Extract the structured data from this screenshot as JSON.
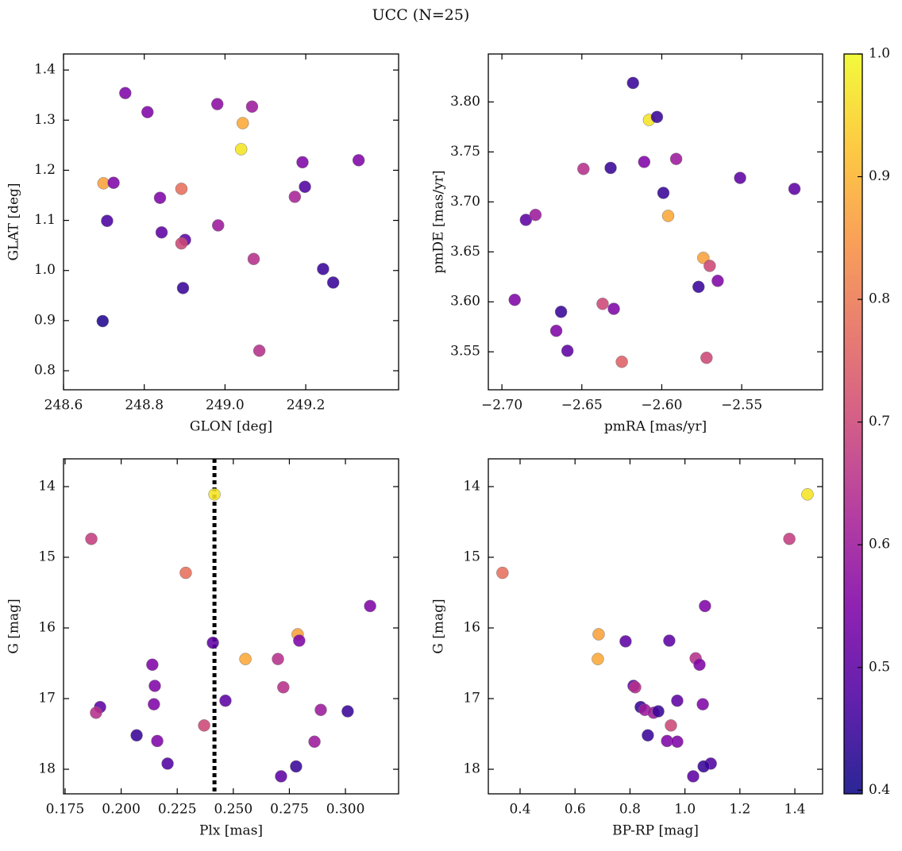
{
  "title": "UCC (N=25)",
  "chart_data": [
    {
      "type": "scatter",
      "xlabel": "GLON [deg]",
      "ylabel": "GLAT [deg]",
      "xlim": [
        248.6,
        249.43
      ],
      "ylim": [
        0.762,
        1.432
      ],
      "xticks": [
        248.6,
        248.8,
        {
          "value": 249.0,
          "label": "249.0"
        },
        249.2
      ],
      "yticks": [
        0.8,
        0.9,
        {
          "value": 1.0,
          "label": "1.0"
        },
        1.1,
        1.2,
        1.3,
        1.4
      ],
      "x": [
        248.753,
        248.808,
        248.981,
        249.067,
        249.044,
        249.04,
        248.699,
        248.724,
        248.892,
        248.839,
        249.192,
        249.331,
        249.198,
        249.173,
        248.708,
        248.843,
        248.901,
        248.892,
        248.983,
        249.071,
        249.243,
        249.268,
        248.896,
        248.697,
        249.085
      ],
      "y": [
        1.354,
        1.316,
        1.332,
        1.327,
        1.294,
        1.242,
        1.174,
        1.175,
        1.163,
        1.145,
        1.216,
        1.22,
        1.167,
        1.147,
        1.099,
        1.076,
        1.061,
        1.054,
        1.09,
        1.023,
        1.003,
        0.976,
        0.965,
        0.899,
        0.84
      ],
      "c": [
        0.55,
        0.55,
        0.57,
        0.6,
        0.88,
        0.97,
        0.87,
        0.55,
        0.78,
        0.55,
        0.55,
        0.55,
        0.48,
        0.62,
        0.47,
        0.5,
        0.5,
        0.7,
        0.6,
        0.65,
        0.45,
        0.45,
        0.45,
        0.42,
        0.65
      ]
    },
    {
      "type": "scatter",
      "xlabel": "pmRA [mas/yr]",
      "ylabel": "pmDE [mas/yr]",
      "xlim": [
        -2.7085,
        -2.4994
      ],
      "ylim": [
        3.512,
        3.848
      ],
      "xticks": [
        {
          "value": -2.7,
          "label": "−2.70"
        },
        {
          "value": -2.65,
          "label": "−2.65"
        },
        {
          "value": -2.6,
          "label": "−2.60"
        },
        {
          "value": -2.55,
          "label": "−2.55"
        }
      ],
      "yticks": [
        3.55,
        {
          "value": 3.6,
          "label": "3.60"
        },
        3.65,
        {
          "value": 3.7,
          "label": "3.70"
        },
        3.75,
        {
          "value": 3.8,
          "label": "3.80"
        }
      ],
      "x": [
        -2.618,
        -2.608,
        -2.603,
        -2.649,
        -2.632,
        -2.611,
        -2.591,
        -2.599,
        -2.551,
        -2.517,
        -2.685,
        -2.679,
        -2.596,
        -2.574,
        -2.57,
        -2.577,
        -2.565,
        -2.692,
        -2.663,
        -2.637,
        -2.63,
        -2.666,
        -2.659,
        -2.625,
        -2.572
      ],
      "y": [
        3.819,
        3.782,
        3.785,
        3.733,
        3.734,
        3.74,
        3.743,
        3.709,
        3.724,
        3.713,
        3.682,
        3.687,
        3.686,
        3.644,
        3.636,
        3.615,
        3.621,
        3.602,
        3.59,
        3.598,
        3.593,
        3.571,
        3.551,
        3.54,
        3.544
      ],
      "c": [
        0.45,
        0.97,
        0.45,
        0.65,
        0.45,
        0.55,
        0.6,
        0.45,
        0.5,
        0.5,
        0.5,
        0.6,
        0.88,
        0.87,
        0.7,
        0.45,
        0.55,
        0.55,
        0.45,
        0.7,
        0.55,
        0.55,
        0.5,
        0.75,
        0.7
      ]
    },
    {
      "type": "scatter",
      "xlabel": "Plx [mas]",
      "ylabel": "G [mag]",
      "xlim": [
        0.1743,
        0.3237
      ],
      "ylim": [
        18.348,
        13.607
      ],
      "vline": 0.2416,
      "xticks": [
        0.175,
        {
          "value": 0.2,
          "label": "0.200"
        },
        0.225,
        {
          "value": 0.25,
          "label": "0.250"
        },
        0.275,
        {
          "value": 0.3,
          "label": "0.300"
        }
      ],
      "yticks": [
        14,
        15,
        16,
        17,
        18
      ],
      "x": [
        0.2416,
        0.1867,
        0.2288,
        0.311,
        0.2409,
        0.2787,
        0.2794,
        0.2554,
        0.2699,
        0.2139,
        0.215,
        0.2723,
        0.2465,
        0.1906,
        0.2146,
        0.1888,
        0.289,
        0.301,
        0.2069,
        0.2161,
        0.237,
        0.2862,
        0.2207,
        0.278,
        0.2713
      ],
      "y": [
        14.11,
        14.74,
        15.22,
        15.69,
        16.21,
        16.09,
        16.18,
        16.44,
        16.44,
        16.52,
        16.82,
        16.84,
        17.03,
        17.12,
        17.08,
        17.2,
        17.16,
        17.18,
        17.52,
        17.6,
        17.38,
        17.61,
        17.92,
        17.96,
        18.1
      ],
      "c": [
        0.97,
        0.68,
        0.78,
        0.55,
        0.5,
        0.87,
        0.55,
        0.88,
        0.65,
        0.55,
        0.55,
        0.65,
        0.5,
        0.5,
        0.55,
        0.65,
        0.6,
        0.45,
        0.45,
        0.55,
        0.7,
        0.6,
        0.48,
        0.45,
        0.5
      ]
    },
    {
      "type": "scatter",
      "xlabel": "BP-RP [mag]",
      "ylabel": "G [mag]",
      "xlim": [
        0.2844,
        1.501
      ],
      "ylim": [
        18.348,
        13.607
      ],
      "xticks": [
        0.4,
        0.6,
        0.8,
        {
          "value": 1.0,
          "label": "1.0"
        },
        1.2,
        1.4
      ],
      "yticks": [
        14,
        15,
        16,
        17,
        18
      ],
      "x": [
        1.446,
        1.38,
        0.336,
        1.073,
        0.686,
        0.784,
        0.943,
        0.683,
        1.039,
        1.053,
        0.813,
        0.819,
        0.972,
        1.065,
        0.839,
        0.854,
        0.886,
        0.903,
        0.949,
        0.865,
        0.935,
        0.972,
        1.094,
        1.068,
        1.03
      ],
      "y": [
        14.11,
        14.74,
        15.22,
        15.69,
        16.09,
        16.19,
        16.18,
        16.44,
        16.43,
        16.52,
        16.82,
        16.84,
        17.03,
        17.08,
        17.12,
        17.16,
        17.2,
        17.18,
        17.38,
        17.52,
        17.6,
        17.61,
        17.92,
        17.96,
        18.1
      ],
      "c": [
        0.97,
        0.68,
        0.78,
        0.55,
        0.87,
        0.5,
        0.5,
        0.88,
        0.65,
        0.55,
        0.5,
        0.65,
        0.5,
        0.55,
        0.45,
        0.6,
        0.6,
        0.45,
        0.7,
        0.45,
        0.55,
        0.55,
        0.48,
        0.45,
        0.5
      ]
    },
    {
      "type": "colorbar",
      "colormap": "plasma",
      "lim": [
        0.397,
        1.0
      ],
      "ticks": [
        0.4,
        0.5,
        0.6,
        0.7,
        0.8,
        0.9,
        {
          "value": 1.0,
          "label": "1.0"
        }
      ]
    }
  ]
}
